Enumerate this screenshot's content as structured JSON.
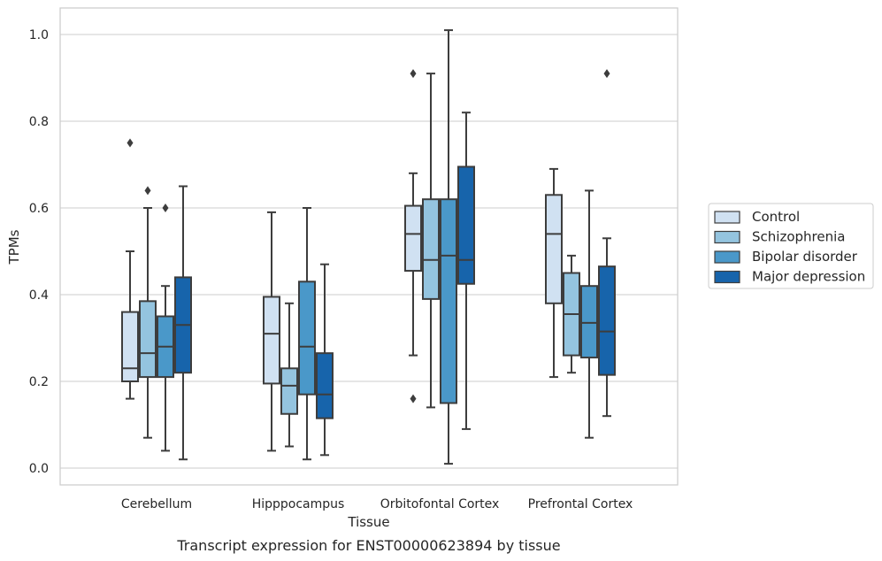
{
  "caption": "Transcript expression for ENST00000623894 by tissue",
  "chart_data": {
    "type": "box",
    "title": "",
    "xlabel": "Tissue",
    "ylabel": "TPMs",
    "ylim": [
      -0.04,
      1.06
    ],
    "yticks": [
      0.0,
      0.2,
      0.4,
      0.6,
      0.8,
      1.0
    ],
    "ytick_labels": [
      "0.0",
      "0.2",
      "0.4",
      "0.6",
      "0.8",
      "1.0"
    ],
    "grid": "horizontal",
    "legend_position": "outside-right",
    "categories": [
      "Cerebellum",
      "Hipppocampus",
      "Orbitofontal Cortex",
      "Prefrontal Cortex"
    ],
    "series": [
      {
        "name": "Control",
        "color": "#d0e1f2",
        "boxes": [
          {
            "whislo": 0.16,
            "q1": 0.2,
            "med": 0.23,
            "q3": 0.36,
            "whishi": 0.5,
            "fliers": [
              0.75
            ]
          },
          {
            "whislo": 0.04,
            "q1": 0.195,
            "med": 0.31,
            "q3": 0.395,
            "whishi": 0.59,
            "fliers": []
          },
          {
            "whislo": 0.26,
            "q1": 0.455,
            "med": 0.54,
            "q3": 0.605,
            "whishi": 0.68,
            "fliers": [
              0.91,
              0.16
            ]
          },
          {
            "whislo": 0.21,
            "q1": 0.38,
            "med": 0.54,
            "q3": 0.63,
            "whishi": 0.69,
            "fliers": []
          }
        ]
      },
      {
        "name": "Schizophrenia",
        "color": "#94c4df",
        "boxes": [
          {
            "whislo": 0.07,
            "q1": 0.21,
            "med": 0.265,
            "q3": 0.385,
            "whishi": 0.6,
            "fliers": [
              0.64
            ]
          },
          {
            "whislo": 0.05,
            "q1": 0.125,
            "med": 0.19,
            "q3": 0.23,
            "whishi": 0.38,
            "fliers": []
          },
          {
            "whislo": 0.14,
            "q1": 0.39,
            "med": 0.48,
            "q3": 0.62,
            "whishi": 0.91,
            "fliers": []
          },
          {
            "whislo": 0.22,
            "q1": 0.26,
            "med": 0.355,
            "q3": 0.45,
            "whishi": 0.49,
            "fliers": []
          }
        ]
      },
      {
        "name": "Bipolar disorder",
        "color": "#4a98c9",
        "boxes": [
          {
            "whislo": 0.04,
            "q1": 0.21,
            "med": 0.28,
            "q3": 0.35,
            "whishi": 0.42,
            "fliers": [
              0.6
            ]
          },
          {
            "whislo": 0.02,
            "q1": 0.17,
            "med": 0.28,
            "q3": 0.43,
            "whishi": 0.6,
            "fliers": []
          },
          {
            "whislo": 0.01,
            "q1": 0.15,
            "med": 0.49,
            "q3": 0.62,
            "whishi": 1.01,
            "fliers": []
          },
          {
            "whislo": 0.07,
            "q1": 0.255,
            "med": 0.335,
            "q3": 0.42,
            "whishi": 0.64,
            "fliers": []
          }
        ]
      },
      {
        "name": "Major depression",
        "color": "#1764ab",
        "boxes": [
          {
            "whislo": 0.02,
            "q1": 0.22,
            "med": 0.33,
            "q3": 0.44,
            "whishi": 0.65,
            "fliers": []
          },
          {
            "whislo": 0.03,
            "q1": 0.115,
            "med": 0.17,
            "q3": 0.265,
            "whishi": 0.47,
            "fliers": []
          },
          {
            "whislo": 0.09,
            "q1": 0.425,
            "med": 0.48,
            "q3": 0.695,
            "whishi": 0.82,
            "fliers": []
          },
          {
            "whislo": 0.12,
            "q1": 0.215,
            "med": 0.315,
            "q3": 0.465,
            "whishi": 0.53,
            "fliers": [
              0.91
            ]
          }
        ]
      }
    ],
    "colors": {
      "edge": "#3d3d3d",
      "grid": "#cccccc",
      "frame": "#cccccc"
    }
  }
}
